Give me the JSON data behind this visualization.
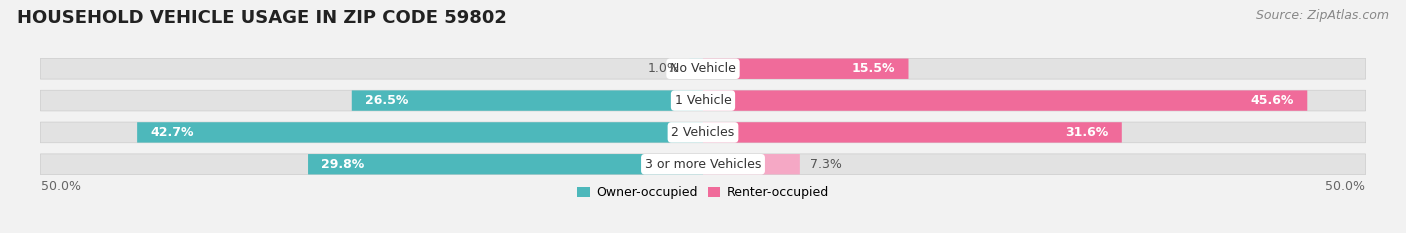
{
  "title": "HOUSEHOLD VEHICLE USAGE IN ZIP CODE 59802",
  "source": "Source: ZipAtlas.com",
  "categories": [
    "No Vehicle",
    "1 Vehicle",
    "2 Vehicles",
    "3 or more Vehicles"
  ],
  "owner_values": [
    1.0,
    26.5,
    42.7,
    29.8
  ],
  "renter_values": [
    15.5,
    45.6,
    31.6,
    7.3
  ],
  "owner_color_strong": "#4db8bb",
  "owner_color_medium": "#4db8bb",
  "owner_color_light": "#9ddde0",
  "renter_color_strong": "#f06b9a",
  "renter_color_medium": "#f06b9a",
  "renter_color_light": "#f5a8c5",
  "legend_owner": "Owner-occupied",
  "legend_renter": "Renter-occupied",
  "background_color": "#f2f2f2",
  "bar_bg_color": "#e2e2e2",
  "title_fontsize": 13,
  "source_fontsize": 9,
  "label_fontsize": 9,
  "category_fontsize": 9,
  "axis_label": "50.0%"
}
